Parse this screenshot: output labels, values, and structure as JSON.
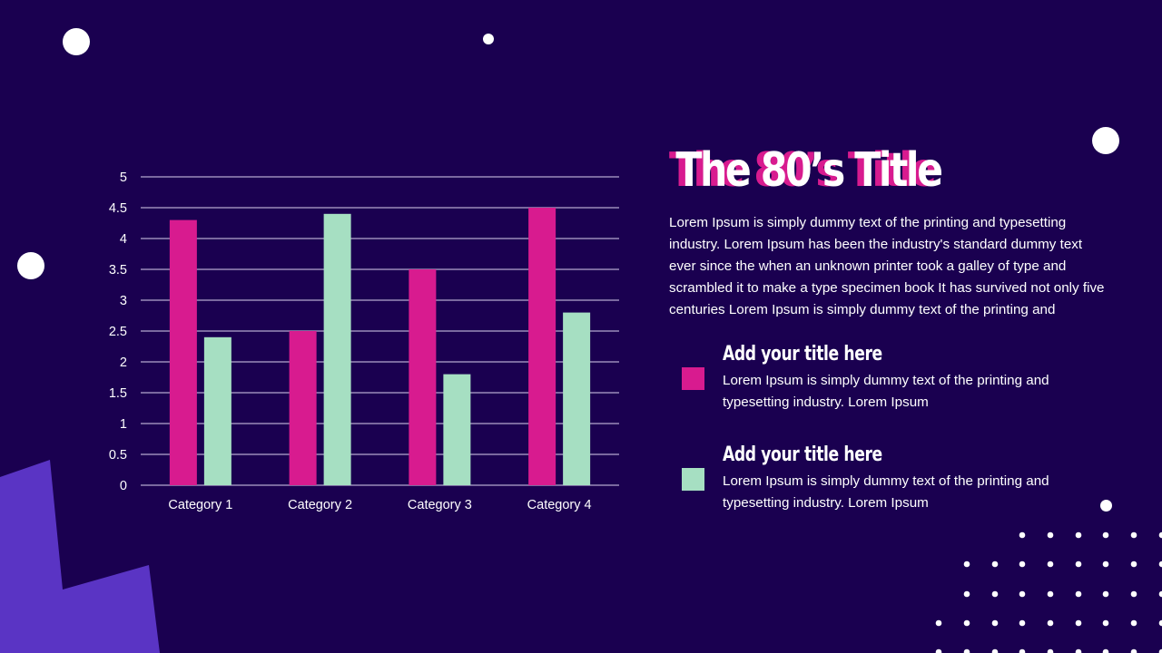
{
  "slide": {
    "title": "The 80’s Title",
    "body": "Lorem Ipsum is simply dummy text of the printing and typesetting industry. Lorem Ipsum has been the industry's standard dummy text ever since the when an unknown printer took a galley of type and scrambled it to make a type specimen book It has survived not only five centuries Lorem Ipsum is simply dummy text of the printing and",
    "legend": [
      {
        "title": "Add your title here",
        "text": "Lorem Ipsum is simply dummy text of the printing and typesetting industry. Lorem Ipsum",
        "color": "#d81b8f"
      },
      {
        "title": "Add your title here",
        "text": "Lorem Ipsum is simply dummy text of the printing and typesetting industry. Lorem Ipsum",
        "color": "#a6dfc2"
      }
    ]
  },
  "colors": {
    "background": "#1a0050",
    "accent_pink": "#d81b8f",
    "accent_mint": "#a6dfc2",
    "accent_purple": "#5a34c4"
  },
  "chart_data": {
    "type": "bar",
    "categories": [
      "Category 1",
      "Category 2",
      "Category 3",
      "Category 4"
    ],
    "series": [
      {
        "values": [
          4.3,
          2.5,
          3.5,
          4.5
        ],
        "color": "#d81b8f"
      },
      {
        "values": [
          2.4,
          4.4,
          1.8,
          2.8
        ],
        "color": "#a6dfc2"
      }
    ],
    "ylim": [
      0,
      5
    ],
    "yticks": [
      "0",
      "0.5",
      "1",
      "1.5",
      "2",
      "2.5",
      "3",
      "3.5",
      "4",
      "4.5",
      "5"
    ],
    "grid": true,
    "legend": "none"
  }
}
